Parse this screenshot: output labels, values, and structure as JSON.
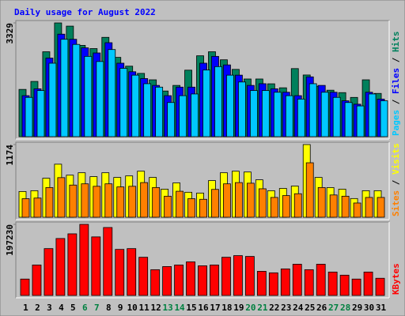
{
  "chart_data": [
    {
      "type": "bar",
      "title": "Daily usage for August 2022",
      "legend_separator": "/",
      "ylim": [
        0,
        3329
      ],
      "yticks": [
        3329
      ],
      "series": [
        {
          "name": "Hits",
          "color": "#00805c",
          "values": [
            1383,
            1617,
            2485,
            3329,
            3235,
            2672,
            2578,
            2907,
            2321,
            2063,
            1852,
            1664,
            1336,
            1500,
            1946,
            2367,
            2485,
            2250,
            1969,
            1688,
            1688,
            1547,
            1430,
            1992,
            1805,
            1477,
            1360,
            1289,
            1149,
            1664,
            1266
          ]
        },
        {
          "name": "Files",
          "color": "#0000ff",
          "values": [
            1200,
            1400,
            2300,
            3000,
            2850,
            2600,
            2450,
            2750,
            2150,
            1900,
            1700,
            1500,
            1200,
            1450,
            1450,
            2150,
            2350,
            2100,
            1800,
            1500,
            1550,
            1400,
            1300,
            1200,
            1750,
            1500,
            1300,
            1050,
            950,
            1300,
            1100
          ]
        },
        {
          "name": "Pages",
          "color": "#00c8ff",
          "values": [
            1150,
            1350,
            2150,
            2850,
            2700,
            2350,
            2200,
            2550,
            2000,
            1800,
            1550,
            1450,
            1000,
            1200,
            1250,
            1950,
            2050,
            1800,
            1600,
            1350,
            1350,
            1300,
            1200,
            1100,
            1550,
            1300,
            1150,
            1000,
            900,
            1250,
            1050
          ]
        }
      ]
    },
    {
      "type": "bar",
      "legend_separator": "/",
      "ylim": [
        0,
        1174
      ],
      "yticks": [
        1174
      ],
      "series": [
        {
          "name": "Visits",
          "color": "#ffff00",
          "values": [
            416,
            429,
            630,
            857,
            680,
            719,
            656,
            719,
            643,
            668,
            744,
            643,
            454,
            555,
            404,
            391,
            592,
            719,
            744,
            731,
            605,
            429,
            466,
            504,
            1174,
            643,
            479,
            454,
            302,
            429,
            429
          ]
        },
        {
          "name": "Sites",
          "color": "#ff8000",
          "values": [
            300,
            310,
            480,
            640,
            520,
            540,
            500,
            540,
            490,
            500,
            560,
            480,
            340,
            420,
            300,
            290,
            450,
            540,
            560,
            550,
            460,
            320,
            350,
            380,
            880,
            480,
            360,
            340,
            230,
            320,
            320
          ]
        }
      ]
    },
    {
      "type": "bar",
      "ylim": [
        0,
        197230
      ],
      "yticks": [
        197230
      ],
      "categories": [
        "1",
        "2",
        "3",
        "4",
        "5",
        "6",
        "7",
        "8",
        "9",
        "10",
        "11",
        "12",
        "13",
        "14",
        "15",
        "16",
        "17",
        "18",
        "19",
        "20",
        "21",
        "22",
        "23",
        "24",
        "25",
        "26",
        "27",
        "28",
        "29",
        "30",
        "31"
      ],
      "category_colors": [
        "#000000",
        "#000000",
        "#000000",
        "#000000",
        "#000000",
        "#008040",
        "#008040",
        "#000000",
        "#000000",
        "#000000",
        "#000000",
        "#000000",
        "#008040",
        "#008040",
        "#000000",
        "#000000",
        "#000000",
        "#000000",
        "#000000",
        "#008040",
        "#008040",
        "#000000",
        "#000000",
        "#000000",
        "#000000",
        "#000000",
        "#008040",
        "#008040",
        "#000000",
        "#000000",
        "#000000"
      ],
      "series": [
        {
          "name": "KBytes",
          "color": "#ff0000",
          "values": [
            45500,
            84500,
            130000,
            158000,
            171000,
            197230,
            162500,
            188500,
            127800,
            130000,
            106000,
            71500,
            80200,
            84500,
            93200,
            82300,
            84500,
            106000,
            110500,
            108300,
            67000,
            62800,
            73700,
            86700,
            71500,
            86700,
            65000,
            56300,
            45500,
            65000,
            47700
          ]
        }
      ]
    }
  ]
}
